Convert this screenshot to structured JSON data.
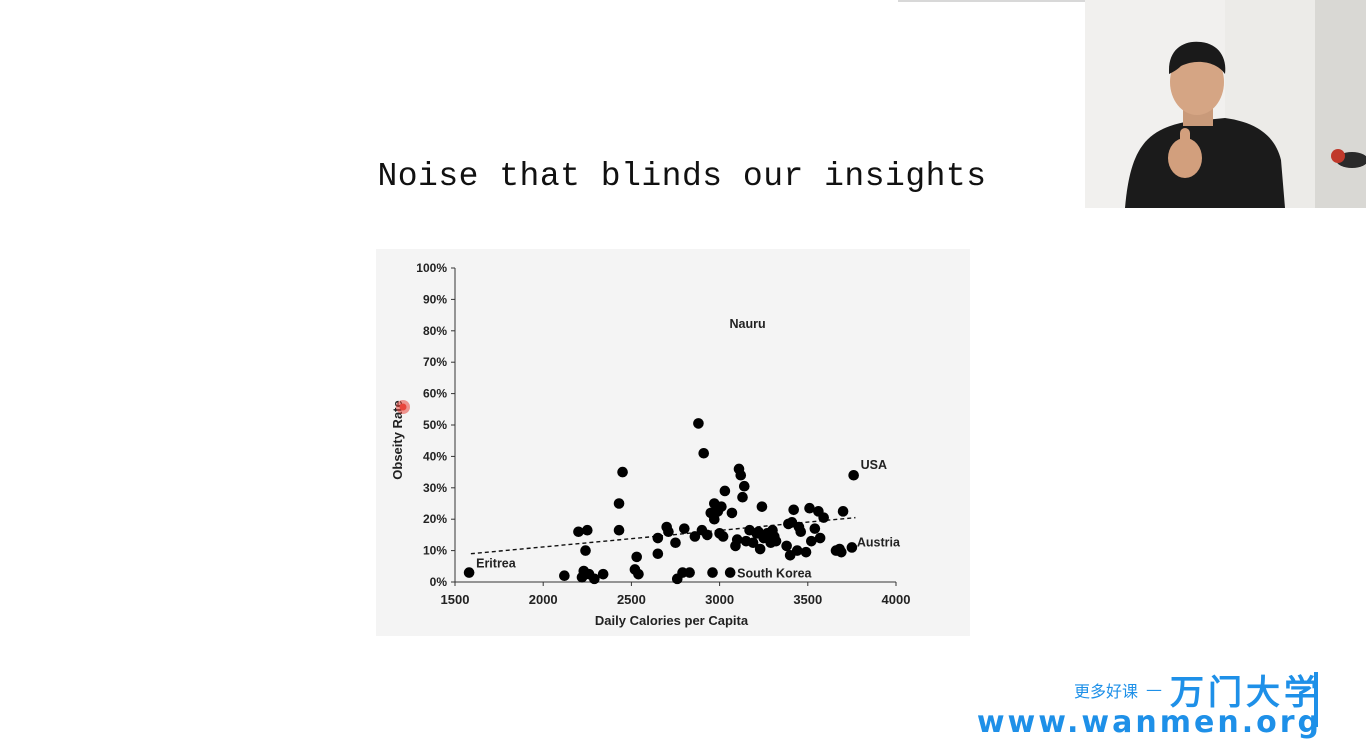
{
  "slide": {
    "title": "Noise that blinds our insights"
  },
  "chart_data": {
    "type": "scatter",
    "xlabel": "Daily Calories per Capita",
    "ylabel": "Obseity Rate",
    "xlim": [
      1500,
      4000
    ],
    "ylim": [
      0,
      100
    ],
    "x_ticks": [
      "1500",
      "2000",
      "2500",
      "3000",
      "3500",
      "4000"
    ],
    "y_ticks": [
      "0%",
      "10%",
      "20%",
      "30%",
      "40%",
      "50%",
      "60%",
      "70%",
      "80%",
      "90%",
      "100%"
    ],
    "trendline": {
      "style": "dashed",
      "from": [
        1590,
        9
      ],
      "to": [
        3770,
        20.5
      ]
    },
    "annotations": [
      {
        "text": "Nauru",
        "x": 3005,
        "y": 79
      },
      {
        "text": "USA",
        "x": 3760,
        "y": 34
      },
      {
        "text": "Austria",
        "x": 3750,
        "y": 11
      },
      {
        "text": "Eritrea",
        "x": 1580,
        "y": 3
      },
      {
        "text": "South Korea",
        "x": 3060,
        "y": 3
      }
    ],
    "points": [
      [
        1580,
        3
      ],
      [
        2120,
        2
      ],
      [
        2200,
        16
      ],
      [
        2220,
        1.5
      ],
      [
        2230,
        3.5
      ],
      [
        2240,
        10
      ],
      [
        2250,
        16.5
      ],
      [
        2260,
        2.5
      ],
      [
        2290,
        1
      ],
      [
        2340,
        2.5
      ],
      [
        2430,
        16.5
      ],
      [
        2430,
        25
      ],
      [
        2450,
        35
      ],
      [
        2520,
        4
      ],
      [
        2530,
        8
      ],
      [
        2540,
        2.5
      ],
      [
        2650,
        14
      ],
      [
        2650,
        9
      ],
      [
        2700,
        17.5
      ],
      [
        2710,
        16
      ],
      [
        2750,
        12.5
      ],
      [
        2760,
        1
      ],
      [
        2790,
        3
      ],
      [
        2800,
        17
      ],
      [
        2830,
        3
      ],
      [
        2860,
        14.5
      ],
      [
        2880,
        50.5
      ],
      [
        2900,
        16.5
      ],
      [
        2910,
        41
      ],
      [
        2930,
        15
      ],
      [
        2950,
        22
      ],
      [
        2960,
        3
      ],
      [
        2970,
        25
      ],
      [
        2970,
        20
      ],
      [
        2990,
        22.5
      ],
      [
        3000,
        15.5
      ],
      [
        3010,
        24
      ],
      [
        3020,
        14.5
      ],
      [
        3030,
        29
      ],
      [
        3060,
        3
      ],
      [
        3070,
        22
      ],
      [
        3090,
        11.5
      ],
      [
        3100,
        13.5
      ],
      [
        3110,
        36
      ],
      [
        3120,
        34
      ],
      [
        3130,
        27
      ],
      [
        3140,
        30.5
      ],
      [
        3150,
        13
      ],
      [
        3170,
        16.5
      ],
      [
        3190,
        12.5
      ],
      [
        3210,
        15.5
      ],
      [
        3220,
        16
      ],
      [
        3230,
        10.5
      ],
      [
        3240,
        24
      ],
      [
        3250,
        14
      ],
      [
        3270,
        15.5
      ],
      [
        3290,
        12.5
      ],
      [
        3300,
        16.5
      ],
      [
        3310,
        14.5
      ],
      [
        3320,
        13
      ],
      [
        3380,
        11.5
      ],
      [
        3390,
        18.5
      ],
      [
        3400,
        8.5
      ],
      [
        3410,
        19
      ],
      [
        3420,
        23
      ],
      [
        3440,
        10
      ],
      [
        3450,
        17.5
      ],
      [
        3460,
        16
      ],
      [
        3490,
        9.5
      ],
      [
        3510,
        23.5
      ],
      [
        3520,
        13
      ],
      [
        3540,
        17
      ],
      [
        3560,
        22.5
      ],
      [
        3570,
        14
      ],
      [
        3590,
        20.5
      ],
      [
        3660,
        10
      ],
      [
        3680,
        10.5
      ],
      [
        3690,
        9.5
      ],
      [
        3700,
        22.5
      ],
      [
        3760,
        34
      ],
      [
        3750,
        11
      ]
    ]
  },
  "webcam": {
    "icon": "presenter-video-icon"
  },
  "watermark": {
    "tagline": "更多好课",
    "dash": "—",
    "brand": "万门大学",
    "url": "www.wanmen.org"
  },
  "colors": {
    "watermark": "#1e90e8",
    "cursor": "#e8453c"
  }
}
